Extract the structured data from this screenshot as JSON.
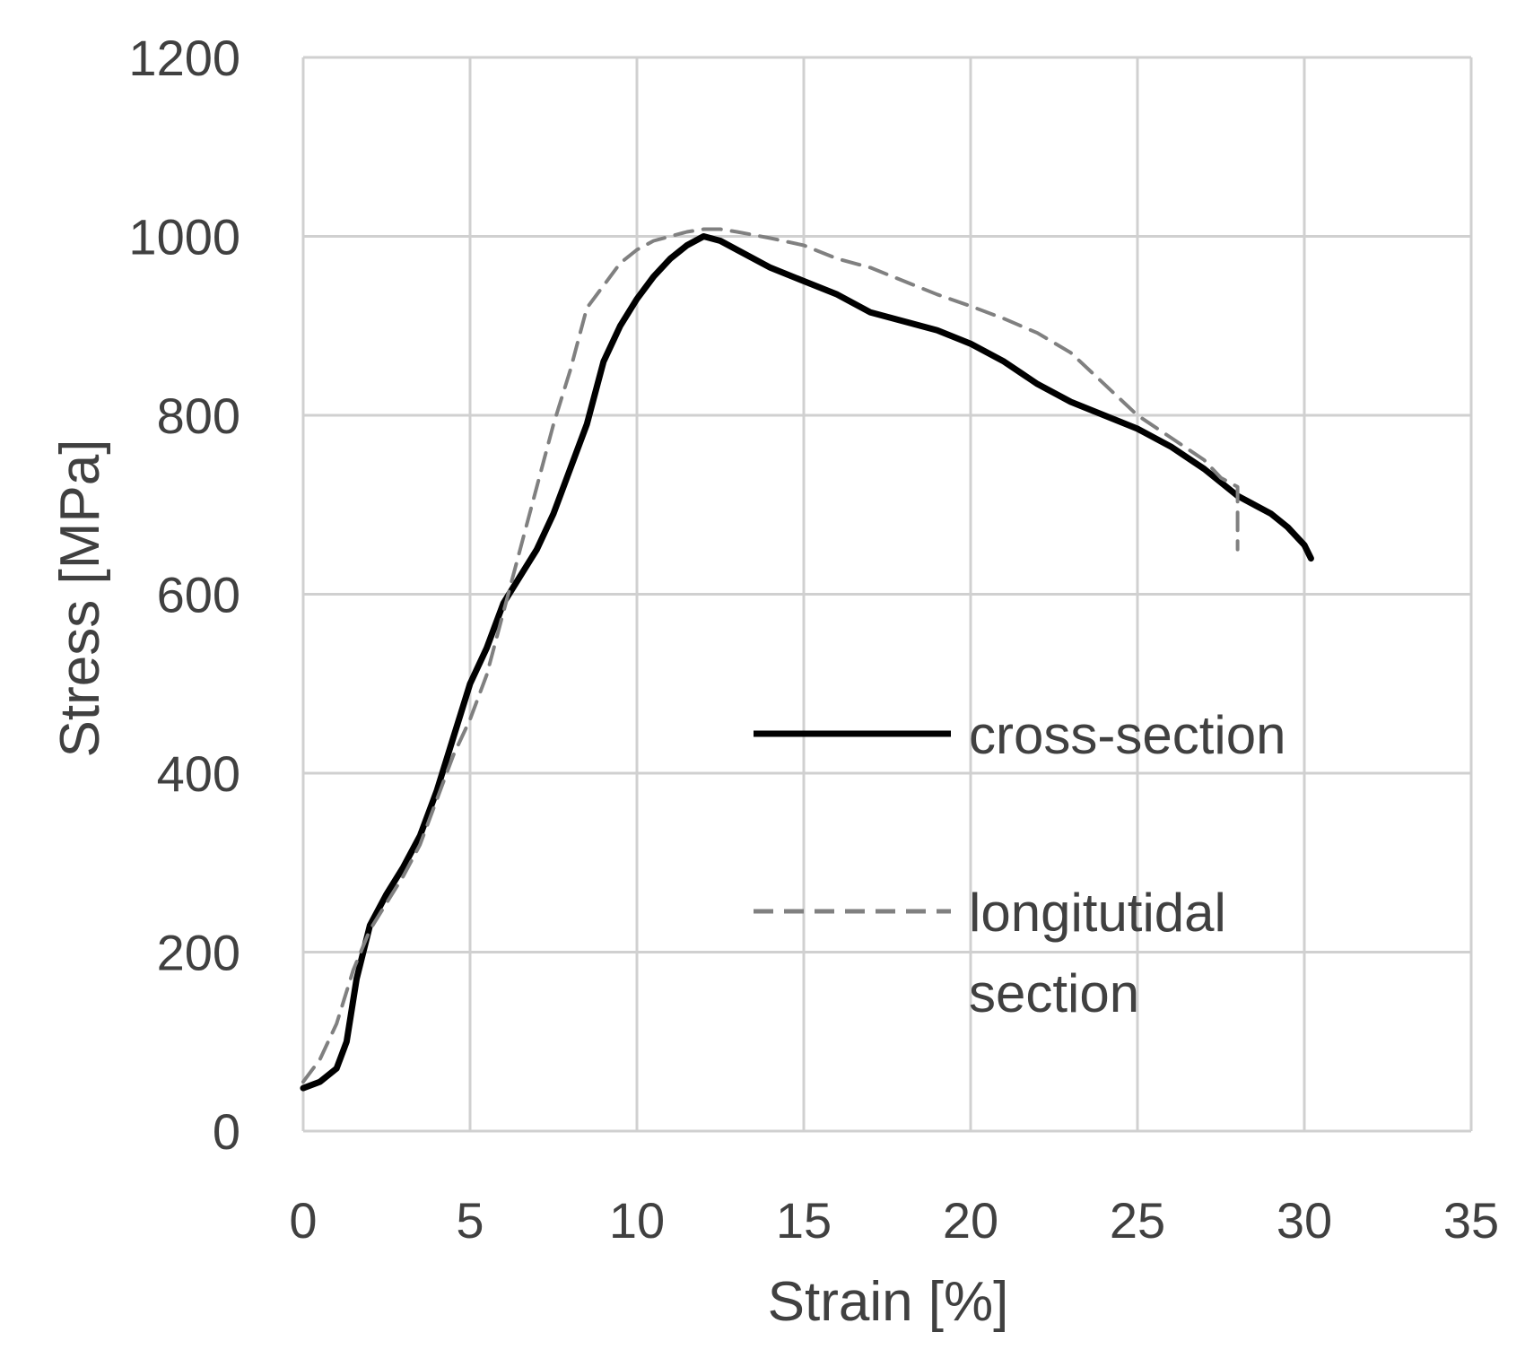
{
  "chart_data": {
    "type": "line",
    "title": "",
    "xlabel": "Strain [%]",
    "ylabel": "Stress [MPa]",
    "xlim": [
      0,
      35
    ],
    "ylim": [
      0,
      1200
    ],
    "xticks": [
      "0",
      "5",
      "10",
      "15",
      "20",
      "25",
      "30",
      "35"
    ],
    "yticks": [
      "0",
      "200",
      "400",
      "600",
      "800",
      "1000",
      "1200"
    ],
    "grid": true,
    "legend_position": "right-center",
    "series": [
      {
        "name": "cross-section",
        "color": "#000000",
        "style": "solid",
        "x": [
          0,
          0.5,
          1.0,
          1.3,
          1.6,
          2.0,
          2.5,
          3.0,
          3.5,
          4.0,
          4.5,
          5.0,
          5.5,
          6.0,
          6.5,
          7.0,
          7.5,
          8.0,
          8.5,
          9.0,
          9.5,
          10.0,
          10.5,
          11.0,
          11.5,
          12.0,
          12.5,
          13.0,
          14.0,
          15.0,
          16.0,
          17.0,
          18.0,
          19.0,
          20.0,
          21.0,
          22.0,
          23.0,
          24.0,
          25.0,
          26.0,
          27.0,
          28.0,
          29.0,
          29.5,
          30.0,
          30.2
        ],
        "y": [
          48,
          55,
          70,
          100,
          170,
          230,
          265,
          295,
          330,
          380,
          440,
          500,
          540,
          590,
          620,
          650,
          690,
          740,
          790,
          860,
          900,
          930,
          955,
          975,
          990,
          1000,
          995,
          985,
          965,
          950,
          935,
          915,
          905,
          895,
          880,
          860,
          835,
          815,
          800,
          785,
          765,
          740,
          710,
          690,
          675,
          655,
          640
        ]
      },
      {
        "name": "longitutidal section",
        "color": "#808080",
        "style": "dashed",
        "x": [
          0,
          0.5,
          1.0,
          1.5,
          2.0,
          2.5,
          3.0,
          3.5,
          4.0,
          4.5,
          5.0,
          5.5,
          6.0,
          6.5,
          7.0,
          7.5,
          8.0,
          8.5,
          9.0,
          9.5,
          10.0,
          10.5,
          11.0,
          11.5,
          12.0,
          12.5,
          13.0,
          14.0,
          15.0,
          16.0,
          17.0,
          18.0,
          19.0,
          20.0,
          21.0,
          22.0,
          23.0,
          24.0,
          25.0,
          26.0,
          27.0,
          27.5,
          28.0,
          28.0
        ],
        "y": [
          55,
          80,
          120,
          180,
          225,
          255,
          285,
          320,
          370,
          420,
          460,
          510,
          580,
          650,
          720,
          790,
          850,
          920,
          945,
          970,
          985,
          995,
          1000,
          1005,
          1008,
          1008,
          1005,
          998,
          990,
          975,
          965,
          950,
          935,
          922,
          908,
          892,
          870,
          835,
          800,
          775,
          750,
          730,
          720,
          650
        ]
      }
    ]
  }
}
